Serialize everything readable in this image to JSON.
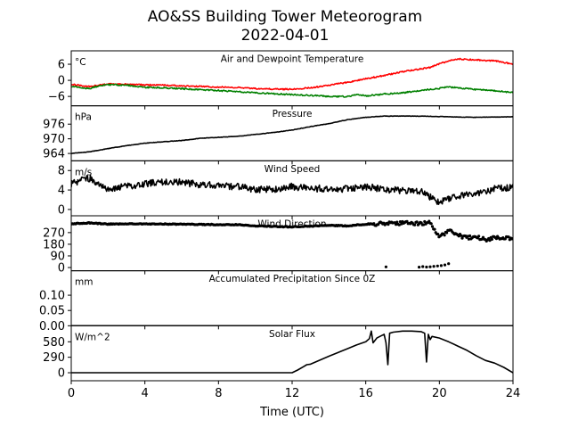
{
  "figure": {
    "title_line1": "AO&SS Building Tower Meteorogram",
    "title_line2": "2022-04-01",
    "xlabel": "Time (UTC)"
  },
  "chart_data": [
    {
      "type": "line",
      "title": "Air and Dewpoint Temperature",
      "unit": "°C",
      "x_ticks": [
        0,
        4,
        8,
        12,
        16,
        20,
        24
      ],
      "ylim": [
        -9.5,
        11
      ],
      "yticks": [
        6,
        0,
        -6
      ],
      "ytick_labels": [
        "6",
        "0",
        "−6"
      ],
      "series": [
        {
          "color": "#ff0000",
          "x": [
            0,
            1,
            2,
            3,
            4,
            5,
            6,
            7,
            8,
            9,
            10,
            11,
            12,
            13,
            14,
            15,
            16,
            17,
            18,
            19,
            19.5,
            20,
            20.5,
            21,
            22,
            23,
            24
          ],
          "y": [
            -1.5,
            -2.3,
            -1.4,
            -1.5,
            -1.7,
            -1.8,
            -2.1,
            -2.3,
            -2.5,
            -2.7,
            -3.1,
            -3.3,
            -3.3,
            -2.8,
            -1.9,
            -0.7,
            0.6,
            1.8,
            3.2,
            4.3,
            4.8,
            6.2,
            7.2,
            8,
            7.6,
            7.3,
            6
          ]
        },
        {
          "color": "#008000",
          "x": [
            0,
            1,
            1.5,
            2,
            3,
            4,
            5,
            6,
            7,
            8,
            9,
            10,
            11,
            12,
            13,
            14,
            15,
            15.5,
            16,
            17,
            18,
            19,
            20,
            20.5,
            21,
            22,
            23,
            24
          ],
          "y": [
            -2.3,
            -3.1,
            -2,
            -1.6,
            -1.8,
            -2.6,
            -2.8,
            -3.1,
            -3.5,
            -3.8,
            -4.2,
            -4.6,
            -5,
            -5.3,
            -5.6,
            -6,
            -6.1,
            -5.3,
            -5.8,
            -5.1,
            -4.7,
            -3.7,
            -3,
            -2.5,
            -2.8,
            -3.4,
            -3.9,
            -4.6
          ]
        }
      ]
    },
    {
      "type": "line",
      "title": "Pressure",
      "unit": "hPa",
      "x_ticks": [
        0,
        4,
        8,
        12,
        16,
        20,
        24
      ],
      "ylim": [
        961,
        983.5
      ],
      "yticks": [
        976,
        970,
        964
      ],
      "ytick_labels": [
        "976",
        "970",
        "964"
      ],
      "series": [
        {
          "color": "#000000",
          "x": [
            0,
            1,
            2,
            3,
            4,
            5,
            6,
            7,
            8,
            9,
            10,
            11,
            12,
            13,
            14,
            15,
            16,
            17,
            18,
            19,
            20,
            21,
            22,
            23,
            24
          ],
          "y": [
            964,
            964.7,
            966,
            967.2,
            968.2,
            968.8,
            969.3,
            970.2,
            970.6,
            971,
            971.8,
            972.6,
            973.6,
            975,
            976.2,
            977.8,
            978.8,
            979.3,
            979.3,
            979.3,
            979.1,
            978.9,
            978.8,
            978.9,
            979
          ]
        }
      ]
    },
    {
      "type": "line",
      "title": "Wind Speed",
      "unit": "m/s",
      "x_ticks": [
        0,
        4,
        8,
        12,
        16,
        20,
        24
      ],
      "ylim": [
        -1.3,
        10
      ],
      "yticks": [
        8,
        4,
        0
      ],
      "ytick_labels": [
        "8",
        "4",
        "0"
      ],
      "series": [
        {
          "color": "#000000",
          "x": [
            0,
            0.5,
            1,
            1.5,
            2,
            3,
            4,
            5,
            6,
            7,
            8,
            9,
            10,
            11,
            12,
            13,
            14,
            15,
            16,
            17,
            18,
            19,
            19.5,
            20,
            20.5,
            21,
            22,
            23,
            24
          ],
          "y": [
            5.2,
            6,
            6.4,
            5.2,
            4.2,
            4.7,
            5.3,
            5.6,
            5.6,
            5.1,
            4.9,
            4.7,
            4.1,
            4.2,
            4.7,
            4.3,
            4.3,
            4.2,
            4.7,
            4.2,
            3.8,
            3.8,
            2.5,
            1.3,
            2.3,
            2.7,
            3.3,
            4.2,
            4.6
          ]
        }
      ]
    },
    {
      "type": "scatter",
      "title": "Wind Direction",
      "unit": "",
      "x_ticks": [
        0,
        4,
        8,
        12,
        16,
        20,
        24
      ],
      "ylim": [
        -25,
        400
      ],
      "yticks": [
        270,
        180,
        90,
        0
      ],
      "ytick_labels": [
        "270",
        "180",
        "90",
        "0"
      ],
      "series": [
        {
          "color": "#000000",
          "x": [
            0,
            1,
            2,
            3,
            4,
            5,
            6,
            7,
            8,
            9,
            10,
            11,
            12,
            13,
            14,
            15,
            16,
            17,
            17.5,
            18,
            18.5,
            19,
            19.5,
            20,
            20.5,
            21,
            21.5,
            22,
            22.5,
            23,
            24
          ],
          "y": [
            338,
            345,
            335,
            338,
            337,
            336,
            335,
            333,
            332,
            331,
            322,
            318,
            314,
            320,
            326,
            322,
            335,
            340,
            339,
            345,
            341,
            339,
            345,
            236,
            285,
            252,
            228,
            240,
            215,
            232,
            225
          ]
        },
        {
          "color": "#000000",
          "x": [
            17.1,
            18.9,
            19.1,
            19.3,
            19.5,
            19.7,
            19.9,
            20.1,
            20.3,
            20.5
          ],
          "y": [
            5,
            3,
            7,
            4,
            6,
            9,
            12,
            15,
            20,
            30
          ]
        }
      ]
    },
    {
      "type": "line",
      "title": "Accumulated Precipitation Since 0Z",
      "unit": "mm",
      "x_ticks": [
        0,
        4,
        8,
        12,
        16,
        20,
        24
      ],
      "ylim": [
        0,
        0.18
      ],
      "yticks": [
        0.1,
        0.05,
        0.0
      ],
      "ytick_labels": [
        "0.10",
        "0.05",
        "0.00"
      ],
      "series": [
        {
          "color": "#000000",
          "x": [
            0,
            24
          ],
          "y": [
            0,
            0
          ]
        }
      ]
    },
    {
      "type": "line",
      "title": "Solar Flux",
      "unit": "W/m^2",
      "x_ticks": [
        0,
        4,
        8,
        12,
        16,
        20,
        24
      ],
      "ylim": [
        -150,
        880
      ],
      "yticks": [
        580,
        290,
        0
      ],
      "ytick_labels": [
        "580",
        "290",
        "0"
      ],
      "series": [
        {
          "color": "#000000",
          "x": [
            0,
            6,
            12,
            12.3,
            12.6,
            12.8,
            13,
            14,
            15,
            15.5,
            16,
            16.2,
            16.3,
            16.4,
            16.6,
            17,
            17.1,
            17.2,
            17.3,
            17.5,
            18,
            18.5,
            19,
            19.2,
            19.3,
            19.4,
            19.5,
            19.6,
            20,
            20.5,
            21,
            21.5,
            22,
            22.5,
            23,
            23.5,
            24
          ],
          "y": [
            0,
            0,
            0,
            50,
            110,
            150,
            160,
            310,
            450,
            520,
            580,
            640,
            780,
            560,
            650,
            720,
            560,
            150,
            740,
            760,
            780,
            780,
            770,
            740,
            200,
            720,
            620,
            680,
            650,
            580,
            500,
            420,
            320,
            230,
            180,
            100,
            0
          ]
        }
      ]
    }
  ]
}
